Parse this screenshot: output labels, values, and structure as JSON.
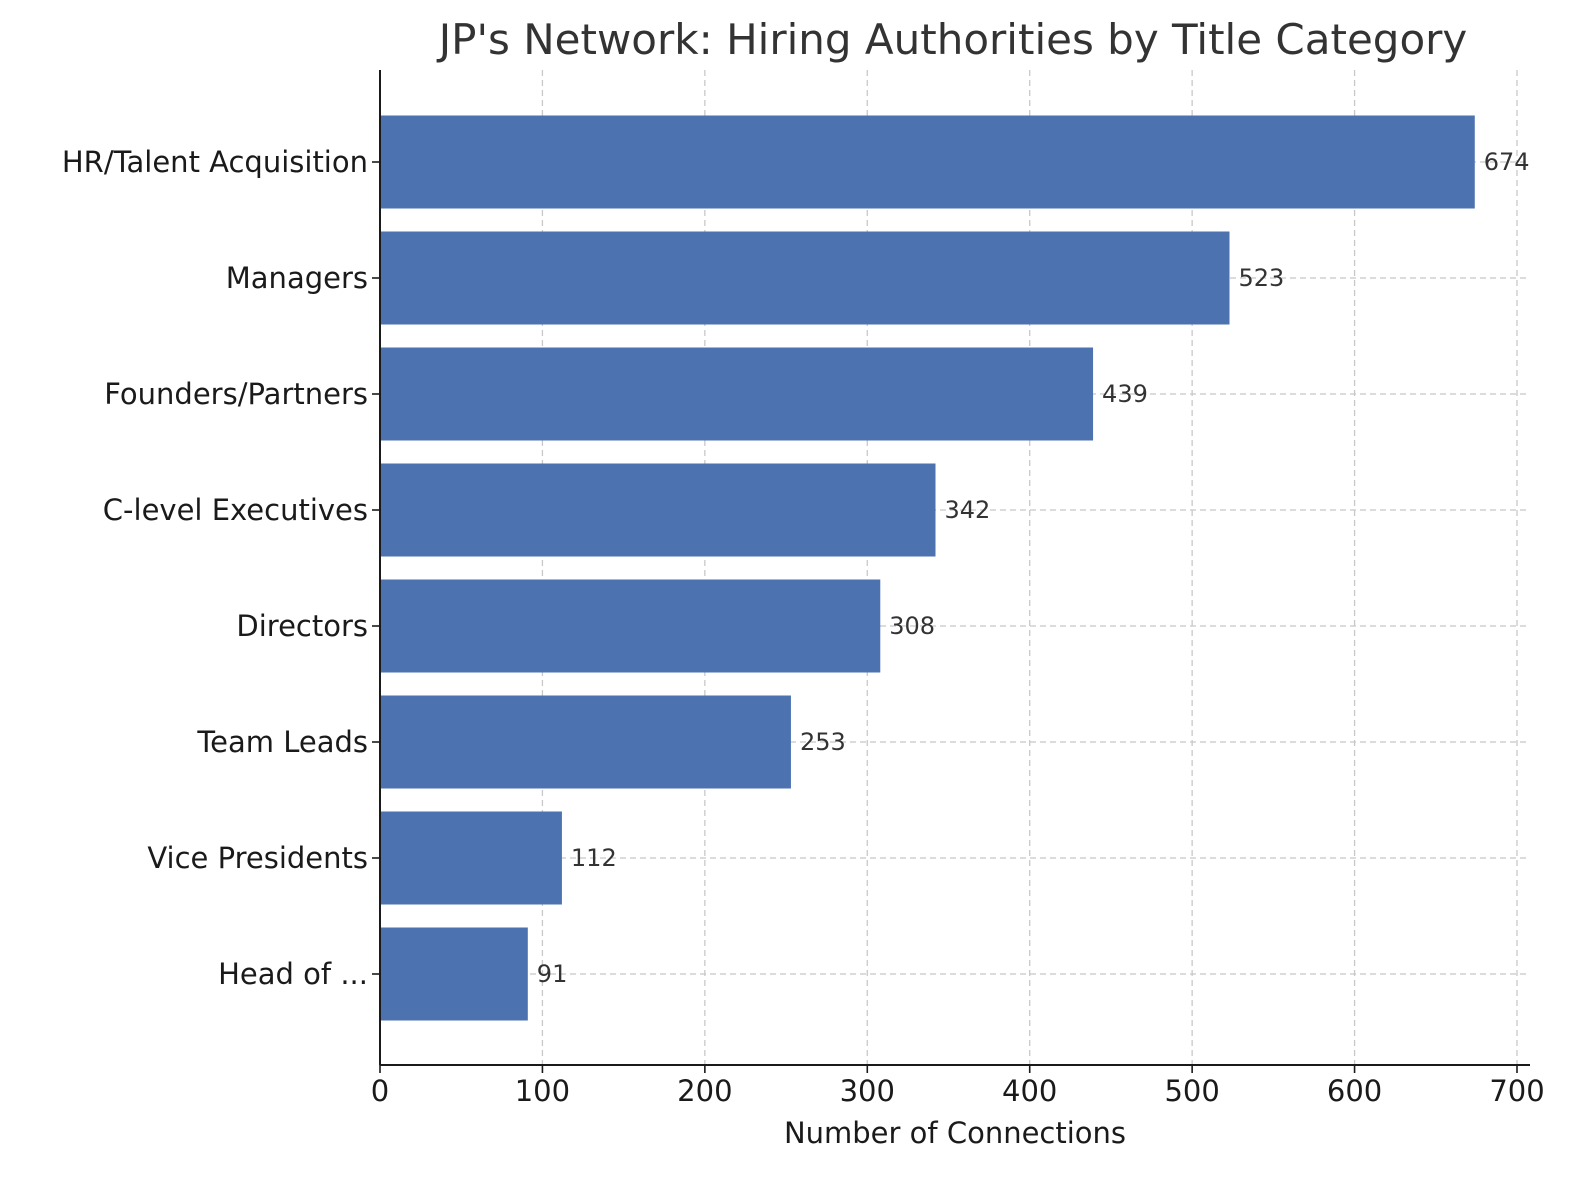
{
  "chart_data": {
    "type": "bar",
    "orientation": "horizontal",
    "title": "JP's Network: Hiring Authorities by Title Category",
    "xlabel": "Number of Connections",
    "ylabel": "",
    "categories": [
      "HR/Talent Acquisition",
      "Managers",
      "Founders/Partners",
      "C-level Executives",
      "Directors",
      "Team Leads",
      "Vice Presidents",
      "Head of ..."
    ],
    "values": [
      674,
      523,
      439,
      342,
      308,
      253,
      112,
      91
    ],
    "xlim": [
      0,
      700
    ],
    "xticks": [
      0,
      100,
      200,
      300,
      400,
      500,
      600,
      700
    ],
    "grid": true,
    "bar_color": "#4c72b0",
    "data_labels": true
  }
}
